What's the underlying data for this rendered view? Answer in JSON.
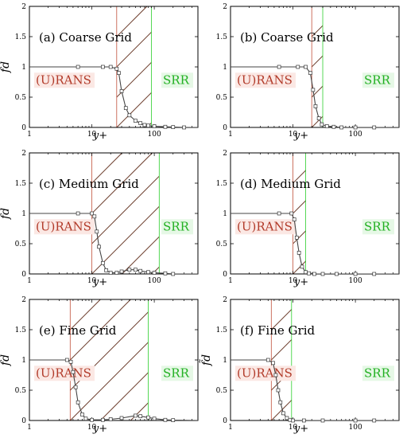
{
  "chart_data": [
    {
      "type": "line",
      "title": "(a) Coarse Grid",
      "xlabel": "y+",
      "ylabel": "f̃d",
      "xscale": "log",
      "xlim": [
        1,
        500
      ],
      "ylim": [
        0,
        2
      ],
      "yticks": [
        "0",
        "0.5",
        "1",
        "1.5",
        "2"
      ],
      "xticks": [
        "1",
        "10",
        "100"
      ],
      "rans_label": "(U)RANS",
      "srr_label": "SRR",
      "interface_lines": {
        "rans_end": 25,
        "srr_start": 90
      },
      "series": [
        {
          "x": [
            1,
            6,
            15,
            20,
            25,
            27,
            30,
            35,
            40,
            50,
            60,
            70,
            80,
            100,
            150,
            200,
            300,
            500
          ],
          "y": [
            1,
            1,
            1,
            1,
            0.97,
            0.9,
            0.6,
            0.32,
            0.2,
            0.11,
            0.07,
            0.04,
            0.03,
            0.02,
            0.01,
            0.005,
            0,
            0
          ]
        }
      ]
    },
    {
      "type": "line",
      "title": "(b) Coarse Grid",
      "xlabel": "y+",
      "ylabel": "",
      "xscale": "log",
      "xlim": [
        1,
        500
      ],
      "ylim": [
        0,
        2
      ],
      "yticks": [
        "0",
        "0.5",
        "1",
        "1.5",
        "2"
      ],
      "xticks": [
        "1",
        "10",
        "100"
      ],
      "rans_label": "(U)RANS",
      "srr_label": "SRR",
      "interface_lines": {
        "rans_end": 20,
        "srr_start": 30
      },
      "series": [
        {
          "x": [
            1,
            6,
            12,
            16,
            19,
            21,
            23,
            26,
            29,
            35,
            45,
            60,
            100,
            200,
            500
          ],
          "y": [
            1,
            1,
            1,
            1,
            0.9,
            0.62,
            0.35,
            0.15,
            0.05,
            0.02,
            0.01,
            0,
            0,
            0,
            0
          ]
        }
      ]
    },
    {
      "type": "line",
      "title": "(c) Medium Grid",
      "xlabel": "y+",
      "ylabel": "f̃d",
      "xscale": "log",
      "xlim": [
        1,
        500
      ],
      "ylim": [
        0,
        2
      ],
      "yticks": [
        "0",
        "0.5",
        "1",
        "1.5",
        "2"
      ],
      "xticks": [
        "1",
        "10",
        "100"
      ],
      "rans_label": "(U)RANS",
      "srr_label": "SRR",
      "interface_lines": {
        "rans_end": 10,
        "srr_start": 120
      },
      "series": [
        {
          "x": [
            1,
            6,
            10,
            11,
            12,
            13,
            15,
            17,
            20,
            25,
            30,
            40,
            50,
            60,
            80,
            100,
            150,
            200,
            500
          ],
          "y": [
            1,
            1,
            1,
            0.95,
            0.7,
            0.45,
            0.18,
            0.06,
            0.02,
            0.02,
            0.04,
            0.07,
            0.07,
            0.05,
            0.03,
            0.02,
            0.01,
            0,
            0
          ]
        }
      ]
    },
    {
      "type": "line",
      "title": "(d) Medium Grid",
      "xlabel": "y+",
      "ylabel": "",
      "xscale": "log",
      "xlim": [
        1,
        500
      ],
      "ylim": [
        0,
        2
      ],
      "yticks": [
        "0",
        "0.5",
        "1",
        "1.5",
        "2"
      ],
      "xticks": [
        "1",
        "10",
        "100"
      ],
      "rans_label": "(U)RANS",
      "srr_label": "SRR",
      "interface_lines": {
        "rans_end": 10,
        "srr_start": 16
      },
      "series": [
        {
          "x": [
            1,
            6,
            9.5,
            10.5,
            11.5,
            12.5,
            14,
            16,
            18,
            22,
            30,
            50,
            100,
            200,
            500
          ],
          "y": [
            1,
            1,
            1,
            0.9,
            0.6,
            0.35,
            0.12,
            0.03,
            0.01,
            0,
            0,
            0,
            0,
            0,
            0
          ]
        }
      ]
    },
    {
      "type": "line",
      "title": "(e) Fine Grid",
      "xlabel": "y+",
      "ylabel": "f̃d",
      "xscale": "log",
      "xlim": [
        1,
        500
      ],
      "ylim": [
        0,
        2
      ],
      "yticks": [
        "0",
        "0.5",
        "1",
        "1.5",
        "2"
      ],
      "xticks": [
        "1",
        "10"
      ],
      "rans_label": "(U)RANS",
      "srr_label": "SRR",
      "interface_lines": {
        "rans_end": 4.5,
        "srr_start": 80
      },
      "series": [
        {
          "x": [
            1,
            4,
            4.6,
            5,
            5.5,
            6,
            7,
            8,
            10,
            15,
            20,
            30,
            50,
            60,
            80,
            100,
            150,
            200,
            500
          ],
          "y": [
            1,
            1,
            0.97,
            0.8,
            0.55,
            0.3,
            0.1,
            0.03,
            0.01,
            0.01,
            0.02,
            0.04,
            0.08,
            0.07,
            0.05,
            0.03,
            0.01,
            0.005,
            0
          ]
        }
      ]
    },
    {
      "type": "line",
      "title": "(f) Fine Grid",
      "xlabel": "y+",
      "ylabel": "f̃d",
      "xscale": "log",
      "xlim": [
        1,
        500
      ],
      "ylim": [
        0,
        2
      ],
      "yticks": [
        "0",
        "0.5",
        "1",
        "1.5",
        "2"
      ],
      "xticks": [
        "1",
        "10",
        "100"
      ],
      "rans_label": "(U)RANS",
      "srr_label": "SRR",
      "interface_lines": {
        "rans_end": 4.5,
        "srr_start": 9.5
      },
      "series": [
        {
          "x": [
            1,
            4,
            4.8,
            5.3,
            5.8,
            6.3,
            7,
            8,
            9,
            10,
            15,
            30,
            100,
            200,
            500
          ],
          "y": [
            1,
            1,
            0.95,
            0.75,
            0.5,
            0.3,
            0.12,
            0.04,
            0.01,
            0,
            0,
            0,
            0,
            0,
            0
          ]
        }
      ]
    }
  ]
}
